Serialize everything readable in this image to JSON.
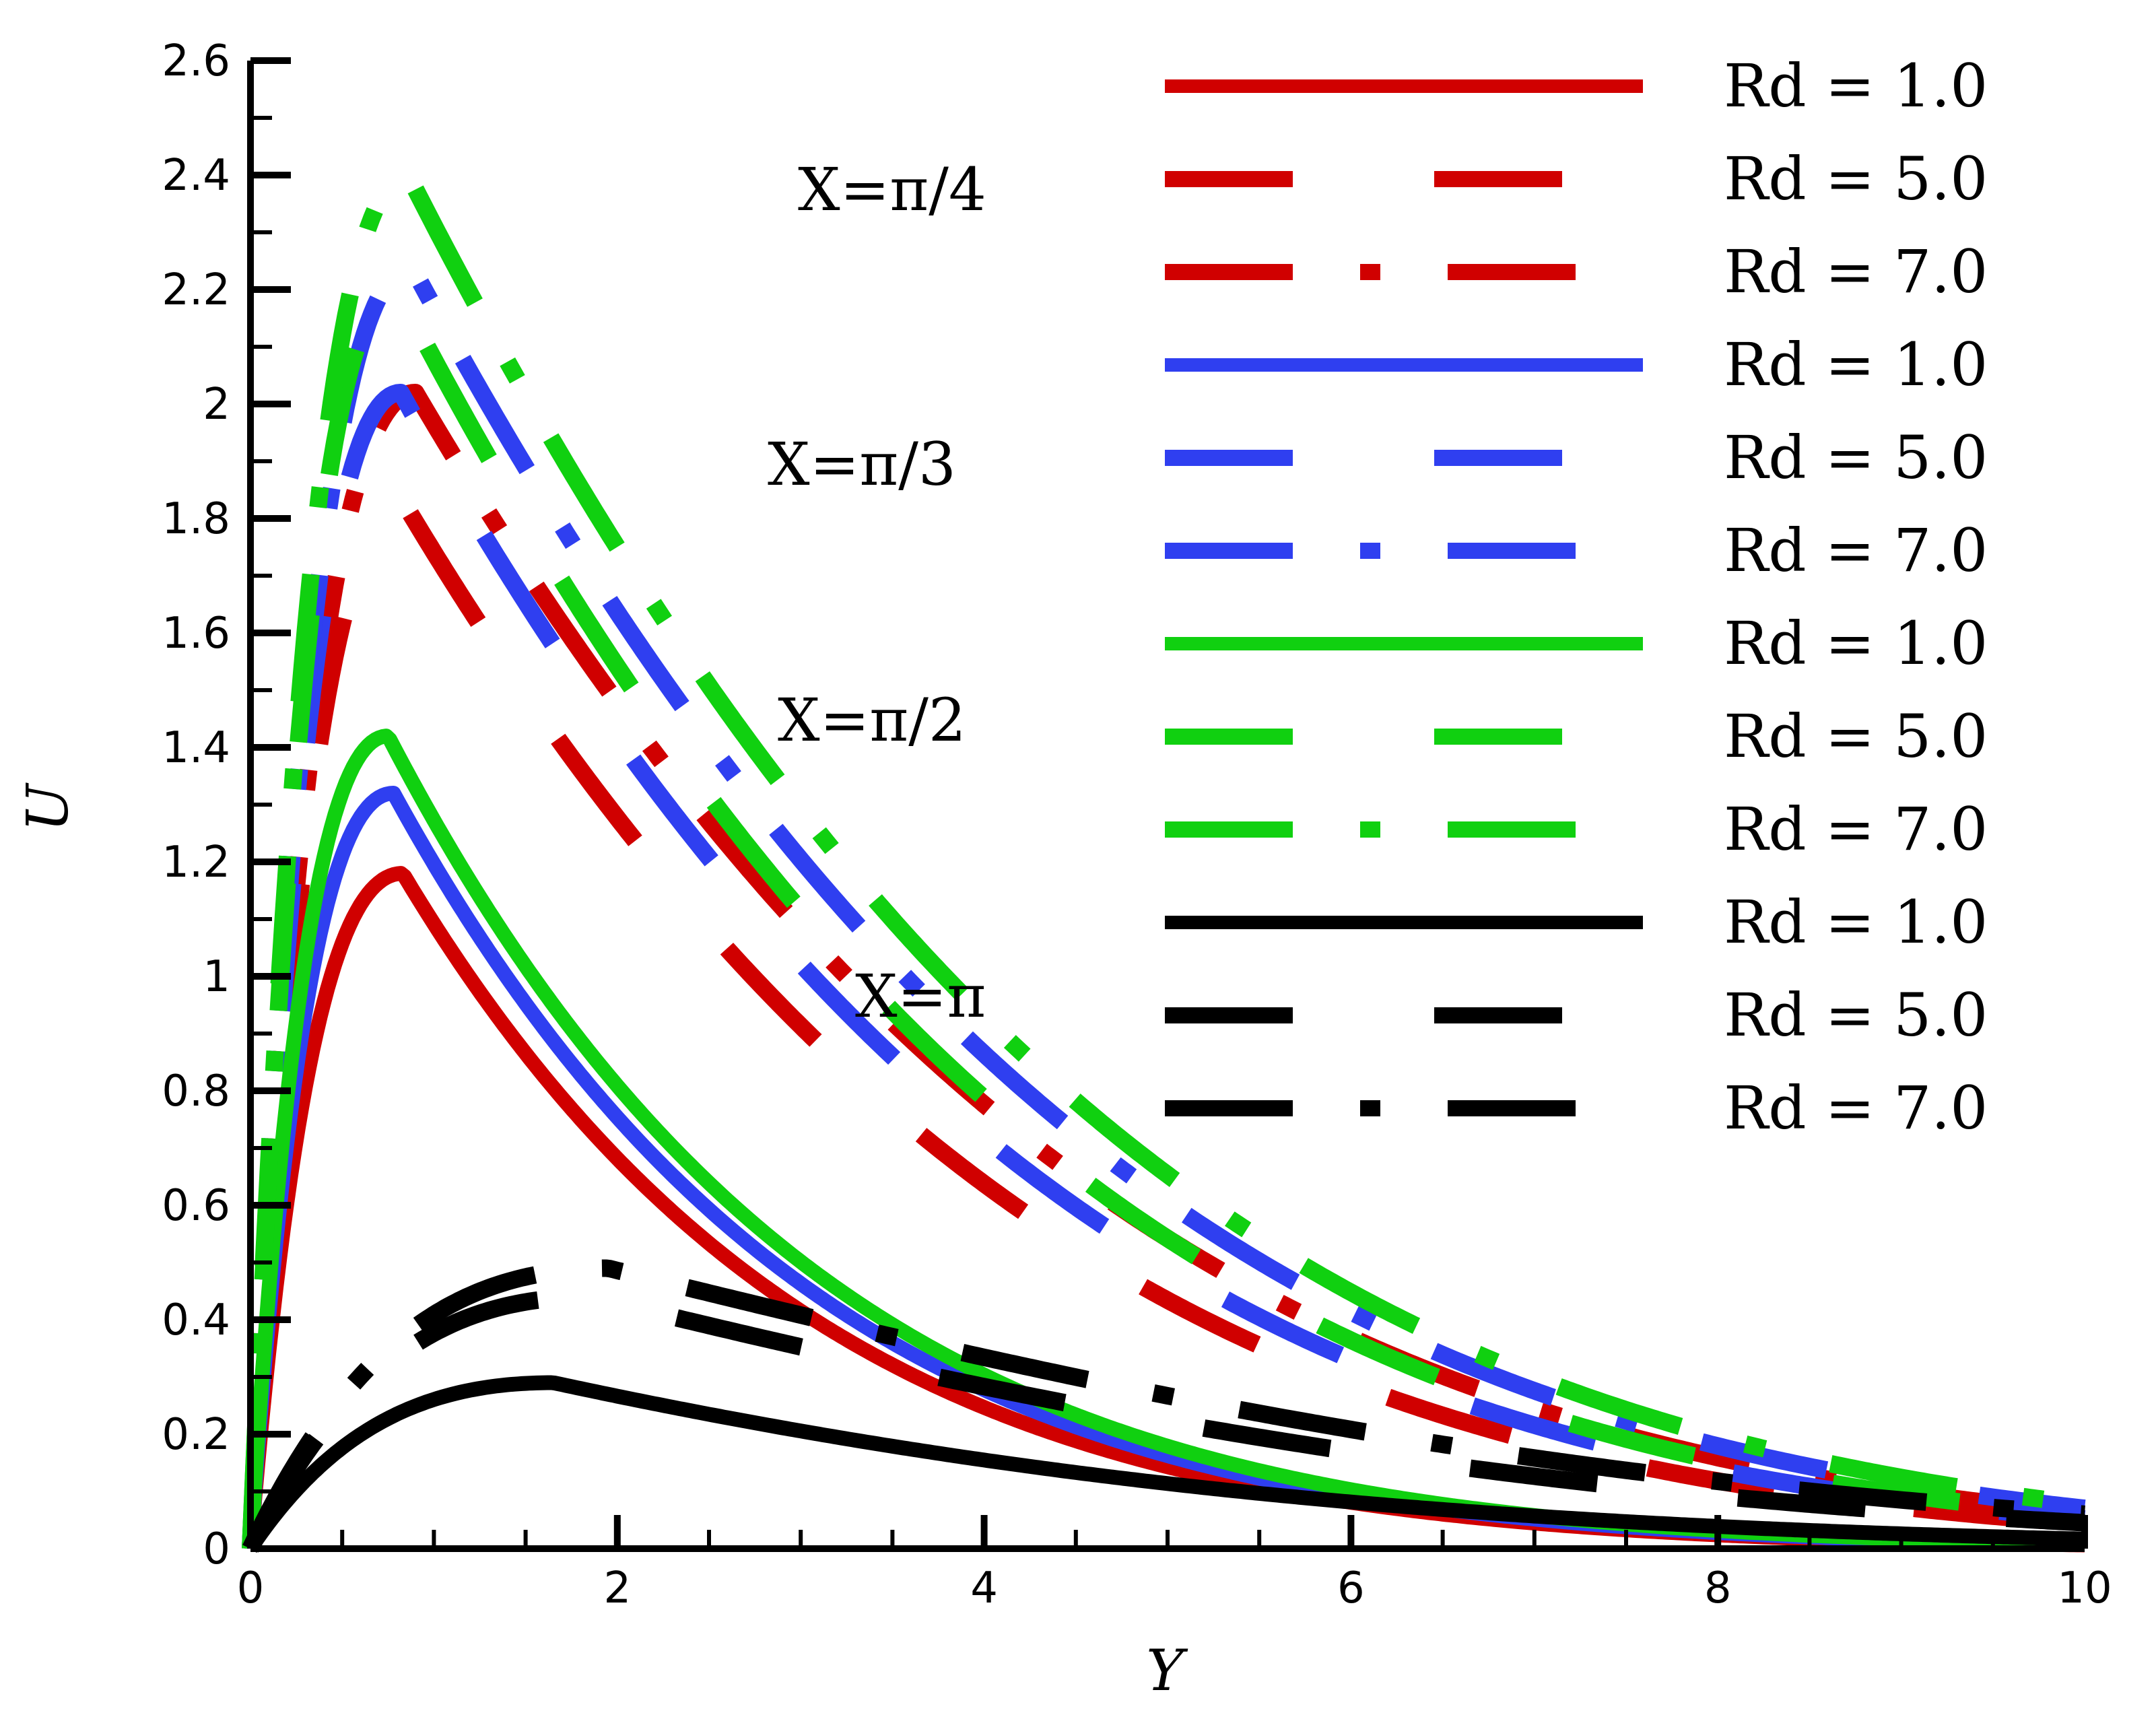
{
  "chart_data": {
    "type": "line",
    "title": "",
    "xlabel": "Y",
    "ylabel": "U",
    "xlim": [
      0,
      10
    ],
    "ylim": [
      0,
      2.6
    ],
    "x_ticks": [
      "0",
      "2",
      "4",
      "6",
      "8",
      "10"
    ],
    "y_ticks": [
      "0",
      "0.2",
      "0.4",
      "0.6",
      "0.8",
      "1",
      "1.2",
      "1.4",
      "1.6",
      "1.8",
      "2",
      "2.2",
      "2.4",
      "2.6"
    ],
    "grid": false,
    "legend_position": "top-right",
    "annotations": [
      {
        "text": "X=π/4",
        "group": 0,
        "near": "top-center"
      },
      {
        "text": "X=π/3",
        "group": 1,
        "near": "upper-center"
      },
      {
        "text": "X=π/2",
        "group": 2,
        "near": "middle-center"
      },
      {
        "text": "X=π",
        "group": 3,
        "near": "middle-center"
      }
    ],
    "series": [
      {
        "name": "Rd = 1.0",
        "color": "#d00000",
        "style": "solid",
        "peak_x": 0.83,
        "peak_y": 1.18,
        "decay": 2.2
      },
      {
        "name": "Rd = 5.0",
        "color": "#d00000",
        "style": "dash",
        "peak_x": 0.85,
        "peak_y": 1.82,
        "decay": 3.4
      },
      {
        "name": "Rd = 7.0",
        "color": "#d00000",
        "style": "dashdot",
        "peak_x": 0.9,
        "peak_y": 2.02,
        "decay": 3.7
      },
      {
        "name": "Rd = 1.0",
        "color": "#2f3ff0",
        "style": "solid",
        "peak_x": 0.78,
        "peak_y": 1.32,
        "decay": 2.25
      },
      {
        "name": "Rd = 5.0",
        "color": "#2f3ff0",
        "style": "dash",
        "peak_x": 0.82,
        "peak_y": 2.02,
        "decay": 3.5
      },
      {
        "name": "Rd = 7.0",
        "color": "#2f3ff0",
        "style": "dashdot",
        "peak_x": 0.88,
        "peak_y": 2.24,
        "decay": 3.75
      },
      {
        "name": "Rd = 1.0",
        "color": "#10d010",
        "style": "solid",
        "peak_x": 0.75,
        "peak_y": 1.42,
        "decay": 2.3
      },
      {
        "name": "Rd = 5.0",
        "color": "#10d010",
        "style": "dash",
        "peak_x": 0.8,
        "peak_y": 2.2,
        "decay": 3.55
      },
      {
        "name": "Rd = 7.0",
        "color": "#10d010",
        "style": "dashdot",
        "peak_x": 0.86,
        "peak_y": 2.4,
        "decay": 3.8
      },
      {
        "name": "Rd = 1.0",
        "color": "#000000",
        "style": "solid",
        "peak_x": 1.65,
        "peak_y": 0.29,
        "decay": 4.2
      },
      {
        "name": "Rd = 5.0",
        "color": "#000000",
        "style": "dash",
        "peak_x": 1.85,
        "peak_y": 0.44,
        "decay": 5.6
      },
      {
        "name": "Rd = 7.0",
        "color": "#000000",
        "style": "dashdot",
        "peak_x": 1.95,
        "peak_y": 0.49,
        "decay": 6.2
      }
    ]
  }
}
